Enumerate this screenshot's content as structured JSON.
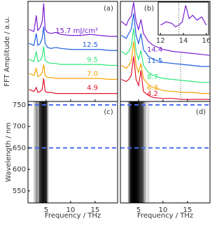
{
  "chart_data": [
    {
      "type": "line",
      "panel_label": "(a)",
      "ylabel": "FFT Amplitude / a.u.",
      "x": [
        1.5,
        2.5,
        3,
        3.3,
        3.8,
        4.2,
        4.5,
        4.8,
        5.3,
        6,
        7,
        8,
        10,
        12,
        14,
        16,
        18,
        19.5
      ],
      "xlim": [
        1.3,
        19.6
      ],
      "xticks": [
        5,
        10,
        15
      ],
      "ylim": [
        0,
        10
      ],
      "series": [
        {
          "name": "15.7 mJ/cm²",
          "color": "#7a1fd1",
          "values": [
            7.2,
            7.0,
            8.6,
            7.1,
            7.4,
            8.0,
            9.8,
            7.2,
            6.9,
            6.8,
            6.9,
            6.7,
            6.6,
            6.6,
            6.7,
            6.6,
            6.5,
            6.5
          ]
        },
        {
          "name": "12.5",
          "color": "#1f5fe0",
          "values": [
            5.8,
            5.6,
            6.8,
            5.6,
            5.8,
            6.3,
            7.5,
            5.8,
            5.4,
            5.3,
            5.4,
            5.3,
            5.2,
            5.2,
            5.2,
            5.2,
            5.1,
            5.1
          ]
        },
        {
          "name": "9.5",
          "color": "#2ee87a",
          "values": [
            4.2,
            4.0,
            5.0,
            4.0,
            4.1,
            4.5,
            5.5,
            4.1,
            3.9,
            3.8,
            3.8,
            3.7,
            3.7,
            3.7,
            3.7,
            3.7,
            3.6,
            3.6
          ]
        },
        {
          "name": "7.0",
          "color": "#f5a300",
          "values": [
            2.8,
            2.6,
            3.3,
            2.5,
            2.6,
            2.9,
            3.7,
            2.6,
            2.4,
            2.4,
            2.3,
            2.3,
            2.3,
            2.3,
            2.3,
            2.3,
            2.2,
            2.2
          ]
        },
        {
          "name": "4.9",
          "color": "#e0142a",
          "values": [
            1.2,
            1.0,
            1.4,
            0.9,
            1.0,
            1.2,
            2.3,
            1.0,
            0.9,
            0.9,
            0.8,
            0.8,
            0.8,
            0.8,
            0.8,
            0.8,
            0.8,
            0.8
          ]
        }
      ]
    },
    {
      "type": "line",
      "panel_label": "(b)",
      "x": [
        1.5,
        2.5,
        3,
        3.5,
        4,
        4.5,
        5,
        5.5,
        6,
        7,
        8,
        10,
        12,
        14,
        16,
        18,
        19.5
      ],
      "xlim": [
        1.3,
        19.6
      ],
      "xticks": [
        5,
        10,
        15
      ],
      "ylim": [
        0,
        10
      ],
      "vlines": [
        13.6
      ],
      "series": [
        {
          "name": "14.4",
          "color": "#7a1fd1",
          "values": [
            8.0,
            7.6,
            8.2,
            8.5,
            9.9,
            8.0,
            7.2,
            8.2,
            6.8,
            6.0,
            5.6,
            5.2,
            5.0,
            4.9,
            4.8,
            4.7,
            4.6
          ]
        },
        {
          "name": "11.5",
          "color": "#1f5fe0",
          "values": [
            6.6,
            6.3,
            6.8,
            7.2,
            8.8,
            6.6,
            5.8,
            6.8,
            5.2,
            4.5,
            4.2,
            3.9,
            3.8,
            3.7,
            3.6,
            3.5,
            3.5
          ]
        },
        {
          "name": "8.7",
          "color": "#2ee87a",
          "values": [
            5.0,
            4.7,
            5.0,
            5.5,
            7.3,
            5.0,
            4.2,
            5.1,
            3.6,
            2.9,
            2.6,
            2.3,
            2.2,
            2.1,
            2.0,
            1.9,
            1.9
          ]
        },
        {
          "name": "6.3",
          "color": "#f5a300",
          "values": [
            3.6,
            3.3,
            3.6,
            4.0,
            6.0,
            3.6,
            2.9,
            3.8,
            2.3,
            1.7,
            1.4,
            1.1,
            1.0,
            0.9,
            0.9,
            0.8,
            0.8
          ]
        },
        {
          "name": "4.2",
          "color": "#e0142a",
          "values": [
            2.2,
            2.0,
            2.2,
            2.6,
            4.5,
            2.2,
            1.6,
            3.1,
            1.0,
            0.6,
            0.4,
            0.3,
            0.3,
            0.2,
            0.2,
            0.2,
            0.2
          ]
        }
      ]
    },
    {
      "type": "line",
      "x": [
        12,
        12.5,
        13,
        13.3,
        13.6,
        13.9,
        14.2,
        14.5,
        14.8,
        15.2,
        15.6,
        16
      ],
      "xlim": [
        11.8,
        16.2
      ],
      "xticks": [
        12,
        14,
        16
      ],
      "ylim": [
        0,
        10
      ],
      "vlines": [
        13.6
      ],
      "series": [
        {
          "color": "#7a1fd1",
          "values": [
            3,
            4,
            3.5,
            2.5,
            3,
            4,
            9,
            5,
            6,
            4.5,
            5.5,
            3
          ]
        }
      ]
    },
    {
      "type": "heatmap",
      "panel_label": "(c)",
      "ylabel": "Wavelength / nm",
      "xlabel": "Frequency / THz",
      "x": [
        2.9,
        3.3,
        4.0,
        4.3,
        4.7,
        5.0
      ],
      "values": [
        0.25,
        0.35,
        0.9,
        0.6,
        0.95,
        0.5
      ],
      "xlim": [
        1.3,
        19.6
      ],
      "xticks": [
        5,
        10,
        15
      ],
      "ylim": [
        522,
        758
      ],
      "yticks": [
        550,
        600,
        650,
        700,
        750
      ],
      "hlines": [
        750,
        650
      ],
      "hline_color": "#4a6cf0"
    },
    {
      "type": "heatmap",
      "panel_label": "(d)",
      "xlabel": "Frequency / THz",
      "x": [
        3.3,
        3.6,
        3.9,
        4.2,
        4.5,
        4.8,
        5.2,
        5.6,
        6.0,
        6.8
      ],
      "values": [
        0.5,
        0.9,
        1,
        1,
        0.95,
        0.9,
        0.6,
        0.7,
        0.4,
        0.15
      ],
      "xlim": [
        1.3,
        19.6
      ],
      "xticks": [
        5,
        10,
        15
      ],
      "ylim": [
        522,
        758
      ],
      "hlines": [
        750,
        650
      ],
      "hline_color": "#4a6cf0"
    }
  ]
}
